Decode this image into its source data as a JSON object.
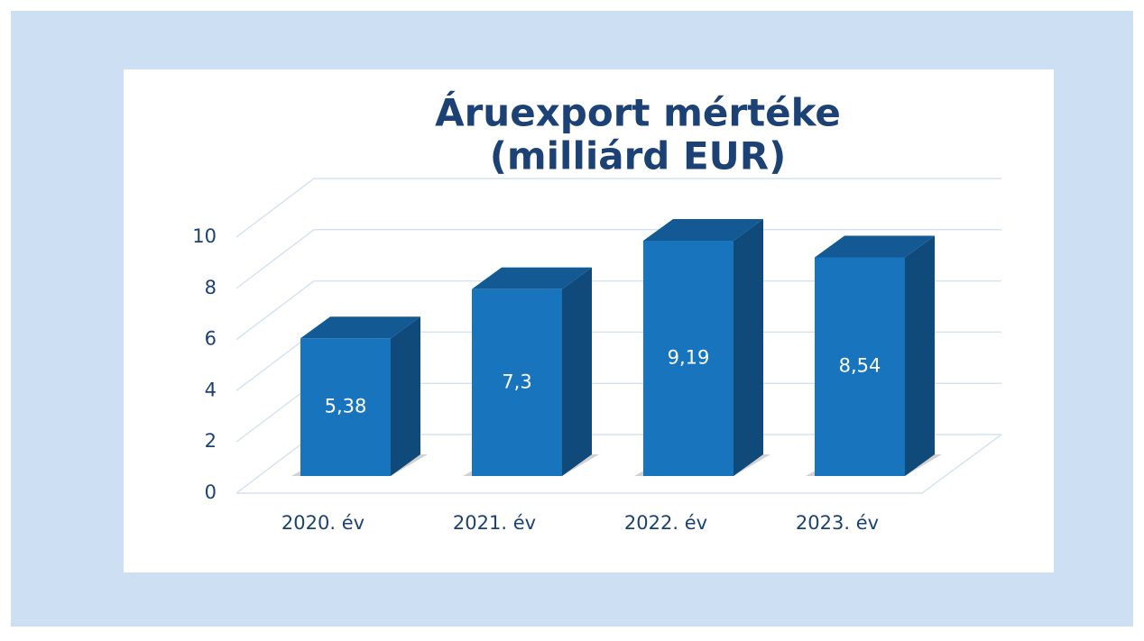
{
  "chart_data": {
    "type": "bar3d",
    "title": [
      "Áruexport mértéke",
      "(milliárd EUR)"
    ],
    "categories": [
      "2020. év",
      "2021. év",
      "2022. év",
      "2023. év"
    ],
    "values": [
      5.38,
      7.3,
      9.19,
      8.54
    ],
    "value_labels": [
      "5,38",
      "7,3",
      "9,19",
      "8,54"
    ],
    "color": "#1874bd",
    "ylim": [
      0,
      10
    ],
    "yticks": [
      0,
      2,
      4,
      6,
      8,
      10
    ],
    "grid": true
  }
}
